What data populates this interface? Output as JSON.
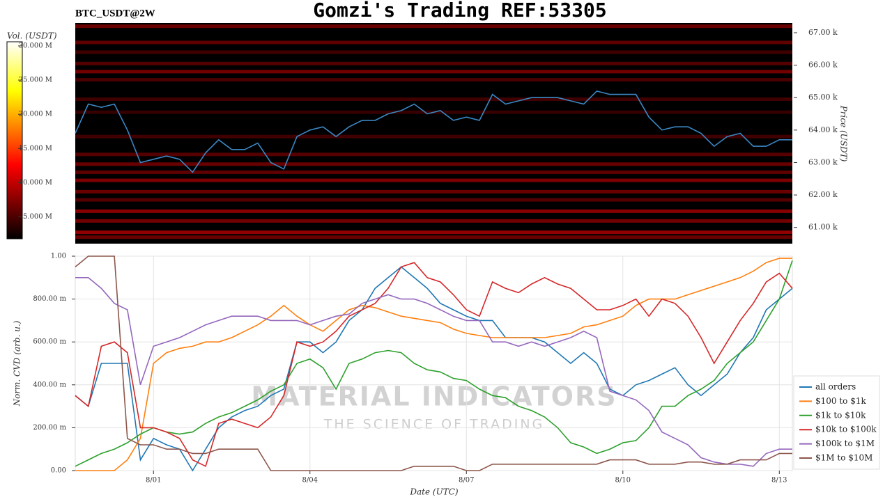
{
  "chart_data": [
    {
      "type": "heatmap",
      "title": "Gomzi's Trading REF:53305",
      "subtitle": "BTC_USDT@2W",
      "ylabel": "Price (USDT)",
      "ylim": [
        60500,
        67300
      ],
      "yticks": [
        {
          "value": 61000,
          "label": "61.00 k"
        },
        {
          "value": 62000,
          "label": "62.00 k"
        },
        {
          "value": 63000,
          "label": "63.00 k"
        },
        {
          "value": 64000,
          "label": "64.00 k"
        },
        {
          "value": 65000,
          "label": "65.00 k"
        },
        {
          "value": 66000,
          "label": "66.00 k"
        },
        {
          "value": 67000,
          "label": "67.00 k"
        }
      ],
      "price": {
        "color": "#3b87c4",
        "values": [
          63900,
          64800,
          64700,
          64800,
          64000,
          63000,
          63100,
          63200,
          63100,
          62700,
          63300,
          63700,
          63400,
          63400,
          63600,
          63000,
          62800,
          63800,
          64000,
          64100,
          63800,
          64100,
          64300,
          64300,
          64500,
          64600,
          64800,
          64500,
          64600,
          64300,
          64400,
          64300,
          65100,
          64800,
          64900,
          65000,
          65000,
          65000,
          64900,
          64800,
          65200,
          65100,
          65100,
          65100,
          64400,
          64000,
          64100,
          64100,
          63900,
          63500,
          63800,
          63900,
          63500,
          63500,
          63700,
          63700
        ]
      },
      "colorbar": {
        "label": "Vol. (USDT)",
        "lim": [
          1800000,
          30600000
        ],
        "ticks": [
          {
            "value": 5000000,
            "label": "5.000 M"
          },
          {
            "value": 10000000,
            "label": "10.000 M"
          },
          {
            "value": 15000000,
            "label": "15.000 M"
          },
          {
            "value": 20000000,
            "label": "20.000 M"
          },
          {
            "value": 25000000,
            "label": "25.000 M"
          },
          {
            "value": 30000000,
            "label": "30.000 M"
          }
        ]
      },
      "levels": {
        "prices": [
          67200,
          66700,
          66400,
          66050,
          65800,
          65550,
          64950,
          64550,
          63800,
          63250,
          62950,
          62700,
          62450,
          62100,
          61850,
          61500,
          61200,
          60850,
          60700
        ],
        "values": [
          7000000,
          6500000,
          5000000,
          6000000,
          7500000,
          5500000,
          5000000,
          4500000,
          5000000,
          6000000,
          7000000,
          6500000,
          8000000,
          7000000,
          6000000,
          8500000,
          7500000,
          9000000,
          7000000
        ]
      }
    },
    {
      "type": "line",
      "xlabel": "Date (UTC)",
      "ylabel": "Norm. CVD (arb. u.)",
      "ylim": [
        0,
        1
      ],
      "grid": true,
      "legend": "right",
      "yticks": [
        {
          "value": 0,
          "label": "0.00"
        },
        {
          "value": 0.2,
          "label": "200.00 m"
        },
        {
          "value": 0.4,
          "label": "400.00 m"
        },
        {
          "value": 0.6,
          "label": "600.00 m"
        },
        {
          "value": 0.8,
          "label": "800.00 m"
        },
        {
          "value": 1,
          "label": "1.00"
        }
      ],
      "categories": [
        null,
        null,
        null,
        null,
        null,
        null,
        "8/01",
        null,
        null,
        null,
        null,
        null,
        null,
        null,
        null,
        null,
        null,
        null,
        "8/04",
        null,
        null,
        null,
        null,
        null,
        null,
        null,
        null,
        null,
        null,
        null,
        "8/07",
        null,
        null,
        null,
        null,
        null,
        null,
        null,
        null,
        null,
        null,
        null,
        "8/10",
        null,
        null,
        null,
        null,
        null,
        null,
        null,
        null,
        null,
        null,
        null,
        "8/13",
        null
      ],
      "watermark": [
        "MATERIAL INDICATORS",
        "THE SCIENCE OF TRADING"
      ],
      "series": [
        {
          "name": "all orders",
          "color": "#1f77b4",
          "values": [
            0.35,
            0.3,
            0.5,
            0.5,
            0.5,
            0.05,
            0.15,
            0.12,
            0.1,
            0.0,
            0.1,
            0.2,
            0.25,
            0.28,
            0.3,
            0.35,
            0.38,
            0.6,
            0.6,
            0.55,
            0.6,
            0.7,
            0.75,
            0.85,
            0.9,
            0.95,
            0.9,
            0.85,
            0.78,
            0.75,
            0.72,
            0.7,
            0.7,
            0.62,
            0.62,
            0.62,
            0.6,
            0.55,
            0.5,
            0.55,
            0.5,
            0.38,
            0.35,
            0.4,
            0.42,
            0.45,
            0.48,
            0.4,
            0.35,
            0.4,
            0.45,
            0.55,
            0.62,
            0.75,
            0.8,
            0.85
          ]
        },
        {
          "name": "$100 to $1k",
          "color": "#ff7f0e",
          "values": [
            0,
            0,
            0,
            0,
            0.05,
            0.15,
            0.5,
            0.55,
            0.57,
            0.58,
            0.6,
            0.6,
            0.62,
            0.65,
            0.68,
            0.72,
            0.77,
            0.72,
            0.68,
            0.65,
            0.7,
            0.75,
            0.77,
            0.76,
            0.74,
            0.72,
            0.71,
            0.7,
            0.69,
            0.66,
            0.64,
            0.63,
            0.62,
            0.62,
            0.62,
            0.62,
            0.62,
            0.63,
            0.64,
            0.67,
            0.68,
            0.7,
            0.72,
            0.77,
            0.8,
            0.8,
            0.8,
            0.82,
            0.84,
            0.86,
            0.88,
            0.9,
            0.93,
            0.97,
            0.99,
            0.99
          ]
        },
        {
          "name": "$1k to $10k",
          "color": "#2ca02c",
          "values": [
            0.02,
            0.05,
            0.08,
            0.1,
            0.13,
            0.17,
            0.2,
            0.18,
            0.17,
            0.18,
            0.22,
            0.25,
            0.27,
            0.3,
            0.33,
            0.37,
            0.4,
            0.5,
            0.52,
            0.48,
            0.38,
            0.5,
            0.52,
            0.55,
            0.56,
            0.55,
            0.5,
            0.47,
            0.46,
            0.43,
            0.42,
            0.38,
            0.35,
            0.34,
            0.3,
            0.28,
            0.25,
            0.2,
            0.13,
            0.11,
            0.08,
            0.1,
            0.13,
            0.14,
            0.2,
            0.3,
            0.3,
            0.35,
            0.38,
            0.42,
            0.5,
            0.55,
            0.6,
            0.7,
            0.8,
            0.98
          ]
        },
        {
          "name": "$10k to $100k",
          "color": "#d62728",
          "values": [
            0.35,
            0.3,
            0.58,
            0.6,
            0.55,
            0.2,
            0.2,
            0.18,
            0.15,
            0.05,
            0.02,
            0.22,
            0.24,
            0.22,
            0.2,
            0.25,
            0.35,
            0.6,
            0.58,
            0.6,
            0.65,
            0.72,
            0.75,
            0.78,
            0.85,
            0.95,
            0.97,
            0.9,
            0.88,
            0.82,
            0.75,
            0.72,
            0.88,
            0.85,
            0.83,
            0.87,
            0.9,
            0.87,
            0.85,
            0.8,
            0.75,
            0.75,
            0.77,
            0.8,
            0.72,
            0.8,
            0.78,
            0.72,
            0.62,
            0.5,
            0.6,
            0.7,
            0.78,
            0.88,
            0.92,
            0.85
          ]
        },
        {
          "name": "$100k to $1M",
          "color": "#9467bd",
          "values": [
            0.9,
            0.9,
            0.85,
            0.78,
            0.75,
            0.4,
            0.58,
            0.6,
            0.62,
            0.65,
            0.68,
            0.7,
            0.72,
            0.72,
            0.72,
            0.7,
            0.7,
            0.7,
            0.68,
            0.7,
            0.72,
            0.73,
            0.78,
            0.8,
            0.82,
            0.8,
            0.8,
            0.78,
            0.75,
            0.72,
            0.7,
            0.7,
            0.6,
            0.6,
            0.58,
            0.6,
            0.58,
            0.6,
            0.62,
            0.65,
            0.62,
            0.37,
            0.35,
            0.33,
            0.28,
            0.18,
            0.15,
            0.12,
            0.06,
            0.04,
            0.03,
            0.03,
            0.02,
            0.08,
            0.1,
            0.1
          ]
        },
        {
          "name": "$1M to $10M",
          "color": "#8c564b",
          "values": [
            0.95,
            1,
            1,
            1,
            0.15,
            0.12,
            0.12,
            0.1,
            0.1,
            0.08,
            0.08,
            0.1,
            0.1,
            0.1,
            0.1,
            0,
            0,
            0,
            0,
            0,
            0,
            0,
            0,
            0,
            0,
            0,
            0.02,
            0.02,
            0.02,
            0.02,
            0,
            0,
            0.03,
            0.03,
            0.03,
            0.03,
            0.03,
            0.03,
            0.03,
            0.03,
            0.03,
            0.05,
            0.05,
            0.05,
            0.03,
            0.03,
            0.03,
            0.04,
            0.04,
            0.03,
            0.03,
            0.05,
            0.05,
            0.05,
            0.08,
            0.08
          ]
        }
      ]
    }
  ]
}
